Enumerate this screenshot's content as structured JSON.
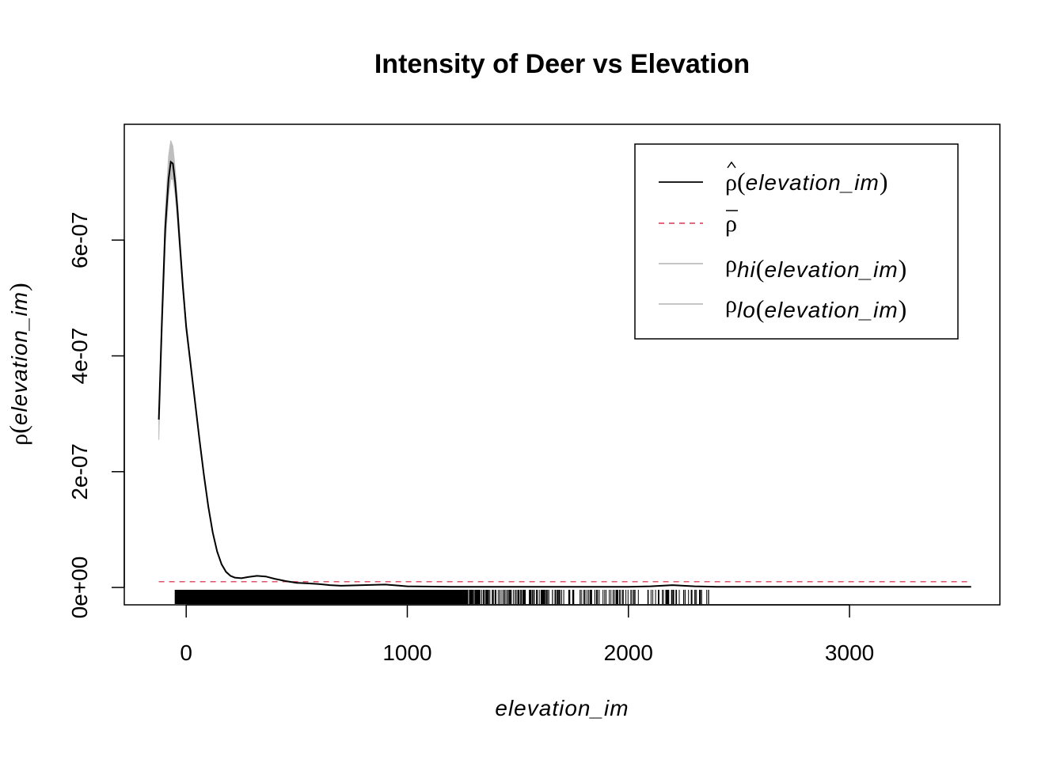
{
  "chart_data": {
    "type": "line",
    "title": "Intensity of Deer vs Elevation",
    "xlabel": "elevation_im",
    "ylabel": {
      "symbol": "ρ",
      "open": "(",
      "name": "elevation_im",
      "close": ")"
    },
    "xlim": [
      -280,
      3680
    ],
    "ylim": [
      -3e-08,
      8e-07
    ],
    "x_ticks": [
      0,
      1000,
      2000,
      3000
    ],
    "x_tick_labels": [
      "0",
      "1000",
      "2000",
      "3000"
    ],
    "y_ticks": [
      0,
      2e-07,
      4e-07,
      6e-07
    ],
    "y_tick_labels": [
      "0e+00",
      "2e-07",
      "4e-07",
      "6e-07"
    ],
    "legend_position": "top-right",
    "series": [
      {
        "key": "rho_hat",
        "color": "#000000",
        "style": "solid",
        "x": [
          -124,
          -110,
          -95,
          -80,
          -70,
          -60,
          -50,
          -40,
          -30,
          -15,
          0,
          20,
          40,
          60,
          80,
          100,
          120,
          140,
          160,
          180,
          200,
          220,
          250,
          280,
          320,
          360,
          400,
          450,
          500,
          550,
          600,
          650,
          700,
          800,
          900,
          1000,
          1200,
          1500,
          1800,
          2000,
          2100,
          2200,
          2300,
          2400,
          2600,
          3000,
          3300,
          3550
        ],
        "y": [
          2.9e-07,
          4.6e-07,
          6.2e-07,
          7.05e-07,
          7.35e-07,
          7.32e-07,
          7e-07,
          6.55e-07,
          6e-07,
          5.2e-07,
          4.5e-07,
          3.85e-07,
          3.2e-07,
          2.55e-07,
          1.95e-07,
          1.4e-07,
          9.5e-08,
          6.2e-08,
          4e-08,
          2.7e-08,
          2e-08,
          1.7e-08,
          1.6e-08,
          1.8e-08,
          2e-08,
          1.9e-08,
          1.5e-08,
          1.1e-08,
          8e-09,
          7e-09,
          6e-09,
          4e-09,
          3e-09,
          4e-09,
          5e-09,
          2e-09,
          1e-09,
          1e-09,
          1e-09,
          1e-09,
          2e-09,
          4e-09,
          2e-09,
          1e-09,
          1e-09,
          1e-09,
          1e-09,
          1e-09
        ]
      },
      {
        "key": "rho_bar",
        "color": "#DF536B",
        "style": "dashed",
        "x": [
          -124,
          3550
        ],
        "y": [
          1e-08,
          1e-08
        ]
      }
    ],
    "envelope": {
      "color": "#BEBEBE",
      "x": [
        -124,
        -110,
        -95,
        -80,
        -70,
        -60,
        -50,
        -40,
        -30,
        -15,
        0,
        20,
        40,
        60,
        80,
        100
      ],
      "hi": [
        2.95e-07,
        4.75e-07,
        6.5e-07,
        7.45e-07,
        7.72e-07,
        7.62e-07,
        7.25e-07,
        6.75e-07,
        6.15e-07,
        5.3e-07,
        4.58e-07,
        3.9e-07,
        3.24e-07,
        2.58e-07,
        1.97e-07,
        1.41e-07
      ],
      "lo": [
        2.55e-07,
        4.3e-07,
        5.9e-07,
        6.75e-07,
        7.05e-07,
        7.05e-07,
        6.8e-07,
        6.35e-07,
        5.85e-07,
        5.1e-07,
        4.42e-07,
        3.8e-07,
        3.16e-07,
        2.52e-07,
        1.93e-07,
        1.39e-07
      ]
    },
    "rug": {
      "dense_range": [
        -50,
        1250
      ],
      "sparse_range": [
        1250,
        2380
      ],
      "dense_step": 3,
      "sparse_count": 260
    },
    "legend": [
      {
        "key": "rho_hat",
        "symbol": "ρ",
        "accent": "hat",
        "sub": "",
        "text": "elevation_im",
        "color": "#000000",
        "style": "solid"
      },
      {
        "key": "rho_bar",
        "symbol": "ρ",
        "accent": "bar",
        "sub": "",
        "text": "",
        "color": "#DF536B",
        "style": "dashed"
      },
      {
        "key": "rho_hi",
        "symbol": "ρ",
        "accent": "",
        "sub": "hi",
        "text": "elevation_im",
        "color": "#BEBEBE",
        "style": "solid"
      },
      {
        "key": "rho_lo",
        "symbol": "ρ",
        "accent": "",
        "sub": "lo",
        "text": "elevation_im",
        "color": "#BEBEBE",
        "style": "solid"
      }
    ]
  }
}
